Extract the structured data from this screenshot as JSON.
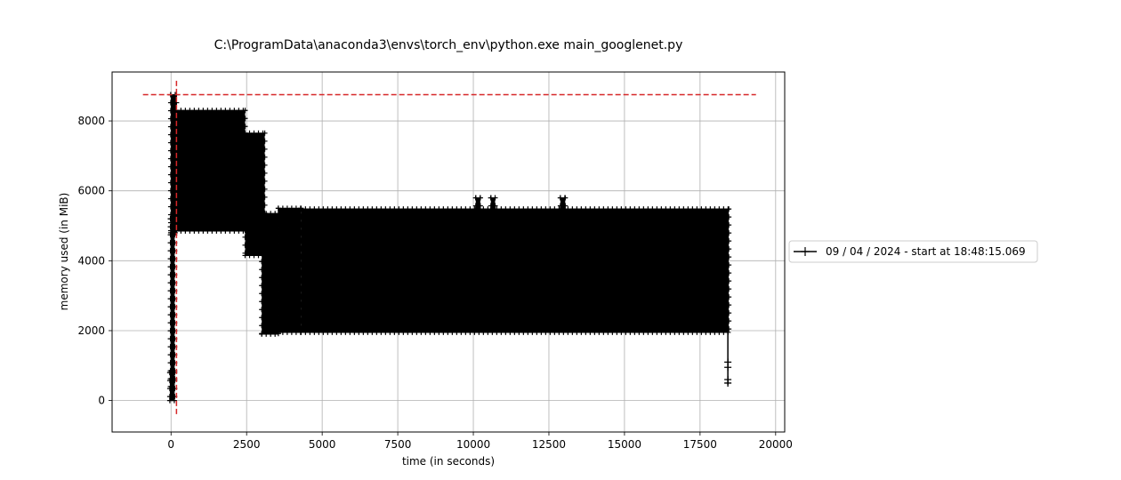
{
  "chart_data": {
    "type": "line",
    "title": "C:\\ProgramData\\anaconda3\\envs\\torch_env\\python.exe main_googlenet.py",
    "xlabel": "time (in seconds)",
    "ylabel": "memory used (in MiB)",
    "xlim": [
      -1950,
      20300
    ],
    "ylim": [
      -900,
      9400
    ],
    "xticks": [
      0,
      2500,
      5000,
      7500,
      10000,
      12500,
      15000,
      17500,
      20000
    ],
    "xtick_labels": [
      "0",
      "2500",
      "5000",
      "7500",
      "10000",
      "12500",
      "15000",
      "17500",
      "20000"
    ],
    "yticks": [
      0,
      2000,
      4000,
      6000,
      8000
    ],
    "ytick_labels": [
      "0",
      "2000",
      "4000",
      "6000",
      "8000"
    ],
    "grid": true,
    "legend_position": "outside-right",
    "series": [
      {
        "name": "09 / 04 / 2024 - start at 18:48:15.069",
        "color": "#000000",
        "marker": "+",
        "bands": [
          {
            "x": [
              -40,
              120
            ],
            "y": [
              0,
              800
            ]
          },
          {
            "x": [
              -20,
              120
            ],
            "y": [
              400,
              5200
            ]
          },
          {
            "x": [
              -10,
              180
            ],
            "y": [
              4800,
              8750
            ]
          },
          {
            "x": [
              180,
              2450
            ],
            "y": [
              4850,
              8300
            ]
          },
          {
            "x": [
              2450,
              3100
            ],
            "y": [
              4150,
              7650
            ]
          },
          {
            "x": [
              3000,
              3550
            ],
            "y": [
              1900,
              5350
            ]
          },
          {
            "x": [
              3550,
              4300
            ],
            "y": [
              1950,
              5500
            ]
          },
          {
            "x": [
              4300,
              18450
            ],
            "y": [
              1950,
              5480
            ]
          },
          {
            "x": [
              10080,
              10230
            ],
            "y": [
              5450,
              5800
            ]
          },
          {
            "x": [
              10580,
              10720
            ],
            "y": [
              5450,
              5800
            ]
          },
          {
            "x": [
              12880,
              13040
            ],
            "y": [
              5450,
              5800
            ]
          }
        ],
        "tail": {
          "x": 18420,
          "y": [
            450,
            4000
          ]
        }
      }
    ],
    "reference_lines": [
      {
        "orientation": "horizontal",
        "y": 8750,
        "x": [
          -930,
          19350
        ],
        "color": "#d62728",
        "style": "dashed"
      },
      {
        "orientation": "vertical",
        "x": 180,
        "y": [
          -420,
          9150
        ],
        "color": "#d62728",
        "style": "dashed"
      }
    ]
  }
}
